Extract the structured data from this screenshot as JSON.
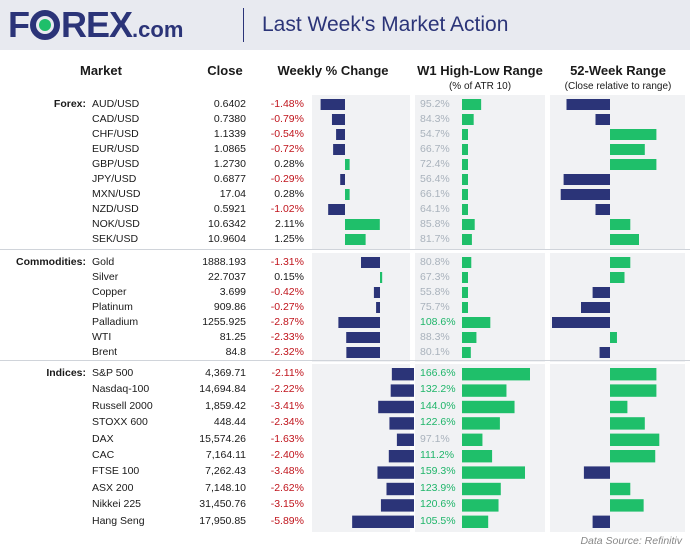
{
  "header": {
    "logo_parts": [
      "F",
      "REX",
      ".com"
    ],
    "title": "Last Week's Market Action"
  },
  "columns": {
    "market": "Market",
    "close": "Close",
    "weekly": "Weekly % Change",
    "w1": "W1 High-Low Range",
    "w1_sub": "(% of ATR 10)",
    "range52": "52-Week Range",
    "range52_sub": "(Close relative to range)"
  },
  "source": "Data Source: Refinitiv",
  "colors": {
    "navy": "#2b3478",
    "green": "#1fbf6a",
    "red": "#c0141c",
    "grey_text": "#a9b2bc"
  },
  "chart_data": {
    "type": "table",
    "groups": [
      {
        "name": "Forex:",
        "rows": [
          {
            "market": "AUD/USD",
            "close": "0.6402",
            "weekly": "-1.48%",
            "weekly_val": -1.48,
            "w1": "95.2%",
            "w1_val": 95.2,
            "r52": -0.75
          },
          {
            "market": "CAD/USD",
            "close": "0.7380",
            "weekly": "-0.79%",
            "weekly_val": -0.79,
            "w1": "84.3%",
            "w1_val": 84.3,
            "r52": -0.25
          },
          {
            "market": "CHF/USD",
            "close": "1.1339",
            "weekly": "-0.54%",
            "weekly_val": -0.54,
            "w1": "54.7%",
            "w1_val": 54.7,
            "r52": 0.8
          },
          {
            "market": "EUR/USD",
            "close": "1.0865",
            "weekly": "-0.72%",
            "weekly_val": -0.72,
            "w1": "66.7%",
            "w1_val": 66.7,
            "r52": 0.6
          },
          {
            "market": "GBP/USD",
            "close": "1.2730",
            "weekly": "0.28%",
            "weekly_val": 0.28,
            "w1": "72.4%",
            "w1_val": 72.4,
            "r52": 0.8
          },
          {
            "market": "JPY/USD",
            "close": "0.6877",
            "weekly": "-0.29%",
            "weekly_val": -0.29,
            "w1": "56.4%",
            "w1_val": 56.4,
            "r52": -0.8
          },
          {
            "market": "MXN/USD",
            "close": "17.04",
            "weekly": "0.28%",
            "weekly_val": 0.28,
            "w1": "66.1%",
            "w1_val": 66.1,
            "r52": -0.85
          },
          {
            "market": "NZD/USD",
            "close": "0.5921",
            "weekly": "-1.02%",
            "weekly_val": -1.02,
            "w1": "64.1%",
            "w1_val": 64.1,
            "r52": -0.25
          },
          {
            "market": "NOK/USD",
            "close": "10.6342",
            "weekly": "2.11%",
            "weekly_val": 2.11,
            "w1": "85.8%",
            "w1_val": 85.8,
            "r52": 0.35
          },
          {
            "market": "SEK/USD",
            "close": "10.9604",
            "weekly": "1.25%",
            "weekly_val": 1.25,
            "w1": "81.7%",
            "w1_val": 81.7,
            "r52": 0.5
          }
        ]
      },
      {
        "name": "Commodities:",
        "rows": [
          {
            "market": "Gold",
            "close": "1888.193",
            "weekly": "-1.31%",
            "weekly_val": -1.31,
            "w1": "80.8%",
            "w1_val": 80.8,
            "r52": 0.35
          },
          {
            "market": "Silver",
            "close": "22.7037",
            "weekly": "0.15%",
            "weekly_val": 0.15,
            "w1": "67.3%",
            "w1_val": 67.3,
            "r52": 0.25
          },
          {
            "market": "Copper",
            "close": "3.699",
            "weekly": "-0.42%",
            "weekly_val": -0.42,
            "w1": "55.8%",
            "w1_val": 55.8,
            "r52": -0.3
          },
          {
            "market": "Platinum",
            "close": "909.86",
            "weekly": "-0.27%",
            "weekly_val": -0.27,
            "w1": "75.7%",
            "w1_val": 75.7,
            "r52": -0.5
          },
          {
            "market": "Palladium",
            "close": "1255.925",
            "weekly": "-2.87%",
            "weekly_val": -2.87,
            "w1": "108.6%",
            "w1_val": 108.6,
            "r52": -1.0
          },
          {
            "market": "WTI",
            "close": "81.25",
            "weekly": "-2.33%",
            "weekly_val": -2.33,
            "w1": "88.3%",
            "w1_val": 88.3,
            "r52": 0.12
          },
          {
            "market": "Brent",
            "close": "84.8",
            "weekly": "-2.32%",
            "weekly_val": -2.32,
            "w1": "80.1%",
            "w1_val": 80.1,
            "r52": -0.18
          }
        ]
      },
      {
        "name": "Indices:",
        "rows": [
          {
            "market": "S&P 500",
            "close": "4,369.71",
            "weekly": "-2.11%",
            "weekly_val": -2.11,
            "w1": "166.6%",
            "w1_val": 166.6,
            "r52": 0.8
          },
          {
            "market": "Nasdaq-100",
            "close": "14,694.84",
            "weekly": "-2.22%",
            "weekly_val": -2.22,
            "w1": "132.2%",
            "w1_val": 132.2,
            "r52": 0.8
          },
          {
            "market": "Russell 2000",
            "close": "1,859.42",
            "weekly": "-3.41%",
            "weekly_val": -3.41,
            "w1": "144.0%",
            "w1_val": 144.0,
            "r52": 0.3
          },
          {
            "market": "STOXX 600",
            "close": "448.44",
            "weekly": "-2.34%",
            "weekly_val": -2.34,
            "w1": "122.6%",
            "w1_val": 122.6,
            "r52": 0.6
          },
          {
            "market": "DAX",
            "close": "15,574.26",
            "weekly": "-1.63%",
            "weekly_val": -1.63,
            "w1": "97.1%",
            "w1_val": 97.1,
            "r52": 0.85
          },
          {
            "market": "CAC",
            "close": "7,164.11",
            "weekly": "-2.40%",
            "weekly_val": -2.4,
            "w1": "111.2%",
            "w1_val": 111.2,
            "r52": 0.78
          },
          {
            "market": "FTSE 100",
            "close": "7,262.43",
            "weekly": "-3.48%",
            "weekly_val": -3.48,
            "w1": "159.3%",
            "w1_val": 159.3,
            "r52": -0.45
          },
          {
            "market": "ASX 200",
            "close": "7,148.10",
            "weekly": "-2.62%",
            "weekly_val": -2.62,
            "w1": "123.9%",
            "w1_val": 123.9,
            "r52": 0.35
          },
          {
            "market": "Nikkei 225",
            "close": "31,450.76",
            "weekly": "-3.15%",
            "weekly_val": -3.15,
            "w1": "120.6%",
            "w1_val": 120.6,
            "r52": 0.58
          },
          {
            "market": "Hang Seng",
            "close": "17,950.85",
            "weekly": "-5.89%",
            "weekly_val": -5.89,
            "w1": "105.5%",
            "w1_val": 105.5,
            "r52": -0.3
          }
        ]
      }
    ]
  }
}
